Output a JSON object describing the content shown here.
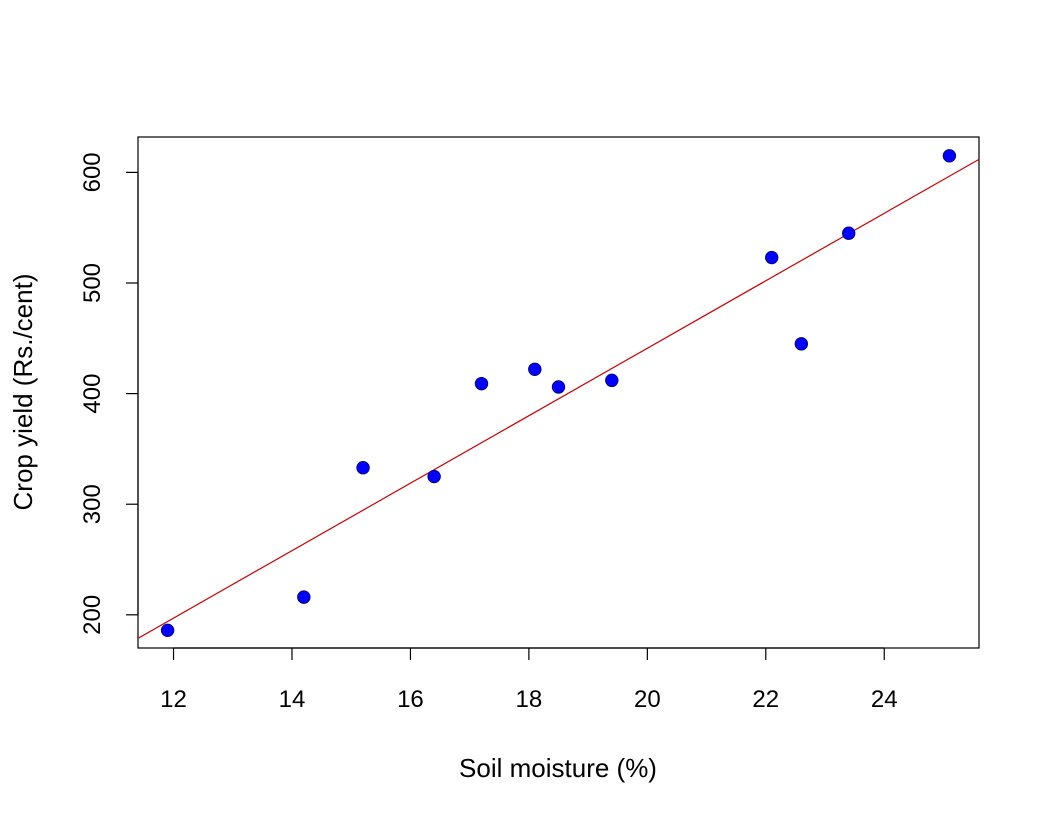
{
  "chart_data": {
    "type": "scatter",
    "title": "",
    "xlabel": "Soil moisture (%)",
    "ylabel": "Crop yield (Rs./cent)",
    "xlim": [
      11.4,
      25.6
    ],
    "ylim": [
      170,
      632
    ],
    "x_ticks": [
      12,
      14,
      16,
      18,
      20,
      22,
      24
    ],
    "y_ticks": [
      200,
      300,
      400,
      500,
      600
    ],
    "grid": false,
    "series": [
      {
        "marker": "filled-circle",
        "color": "#0000ff",
        "points": [
          {
            "x": 11.9,
            "y": 186
          },
          {
            "x": 14.2,
            "y": 216
          },
          {
            "x": 15.2,
            "y": 333
          },
          {
            "x": 16.4,
            "y": 325
          },
          {
            "x": 17.2,
            "y": 409
          },
          {
            "x": 18.1,
            "y": 422
          },
          {
            "x": 18.5,
            "y": 406
          },
          {
            "x": 19.4,
            "y": 412
          },
          {
            "x": 22.1,
            "y": 523
          },
          {
            "x": 22.6,
            "y": 445
          },
          {
            "x": 23.4,
            "y": 545
          },
          {
            "x": 25.1,
            "y": 615
          }
        ]
      }
    ],
    "regression_line": {
      "color": "#cc0000",
      "intercept": -169,
      "slope": 30.5
    }
  }
}
